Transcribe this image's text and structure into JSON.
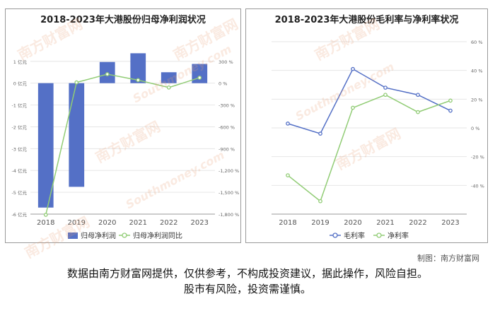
{
  "chart_data": [
    {
      "type": "bar",
      "title": "2018-2023年大港股份归母净利润状况",
      "categories": [
        "2018",
        "2019",
        "2020",
        "2021",
        "2022",
        "2023"
      ],
      "series": [
        {
          "name": "归母净利润",
          "type": "bar",
          "axis": "left",
          "values": [
            -5.7,
            -4.75,
            0.97,
            1.37,
            0.5,
            0.88
          ]
        },
        {
          "name": "归母净利润同比",
          "type": "line",
          "axis": "right",
          "values": [
            -1810,
            10,
            123,
            42,
            -60,
            75
          ]
        }
      ],
      "left_axis": {
        "ticks": [
          1,
          0,
          -1,
          -2,
          -3,
          -4,
          -5,
          -6
        ],
        "tick_labels": [
          "1 亿元",
          "0 亿元",
          "-1 亿元",
          "-2 亿元",
          "-3 亿元",
          "-4 亿元",
          "-5 亿元",
          "-6 亿元"
        ],
        "ylim": [
          -6,
          1.9
        ]
      },
      "right_axis": {
        "ticks": [
          300,
          0,
          -300,
          -600,
          -900,
          -1200,
          -1500,
          -1800
        ],
        "tick_labels": [
          "300 %",
          "0 %",
          "-300 %",
          "-600 %",
          "-900 %",
          "-1,200 %",
          "-1,500 %",
          "-1,800 %"
        ]
      },
      "colors": {
        "bar": "#5470c6",
        "line": "#91cc75"
      },
      "legend": "bottom"
    },
    {
      "type": "line",
      "title": "2018-2023年大港股份毛利率与净利率状况",
      "categories": [
        "2018",
        "2019",
        "2020",
        "2021",
        "2022",
        "2023"
      ],
      "series": [
        {
          "name": "毛利率",
          "values": [
            3,
            -4,
            41,
            28,
            23,
            12
          ]
        },
        {
          "name": "净利率",
          "values": [
            -33,
            -51,
            14,
            23,
            11,
            19
          ]
        }
      ],
      "y_axis": {
        "ticks": [
          60,
          40,
          20,
          0,
          -20,
          -40
        ],
        "tick_labels": [
          "60 %",
          "40 %",
          "20 %",
          "0 %",
          "-20 %",
          "-40 %"
        ],
        "ylim": [
          -60,
          60
        ]
      },
      "colors": {
        "gross": "#5470c6",
        "net": "#91cc75"
      },
      "legend": "bottom"
    }
  ],
  "watermark": {
    "cn": "南方财富网",
    "en": "Southmoney.com"
  },
  "source_label": "制图：南方财富网",
  "disclaimer": {
    "line1": "数据由南方财富网提供，仅供参考，不构成投资建议，据此操作，风险自担。",
    "line2": "股市有风险，投资需谨慎。"
  }
}
